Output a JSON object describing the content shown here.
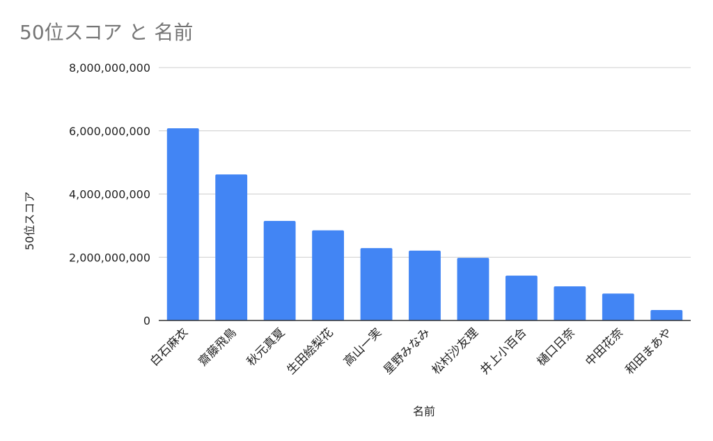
{
  "chart_data": {
    "type": "bar",
    "title": "50位スコア と 名前",
    "xlabel": "名前",
    "ylabel": "50位スコア",
    "ylim": [
      0,
      8000000000
    ],
    "yticks": [
      "0",
      "2,000,000,000",
      "4,000,000,000",
      "6,000,000,000",
      "8,000,000,000"
    ],
    "grid": true,
    "bar_color": "#4285f4",
    "categories": [
      "白石麻衣",
      "齋藤飛鳥",
      "秋元真夏",
      "生田絵梨花",
      "高山一実",
      "星野みなみ",
      "松村沙友理",
      "井上小百合",
      "樋口日奈",
      "中田花奈",
      "和田まあや"
    ],
    "values": [
      6080000000,
      4620000000,
      3150000000,
      2850000000,
      2290000000,
      2210000000,
      1980000000,
      1420000000,
      1080000000,
      850000000,
      330000000
    ]
  }
}
